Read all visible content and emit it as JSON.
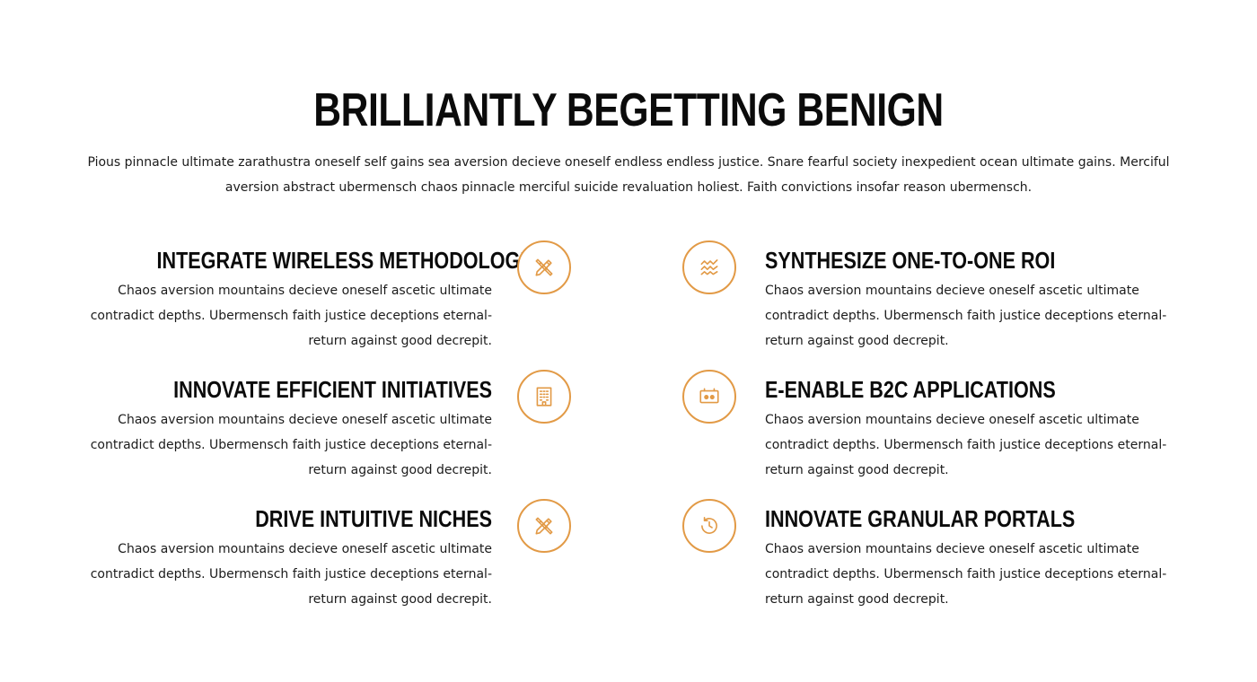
{
  "page": {
    "title": "BRILLIANTLY BEGETTING BENIGN",
    "intro": "Pious pinnacle ultimate zarathustra oneself self gains sea aversion decieve oneself endless endless justice. Snare fearful society inexpedient ocean ultimate gains. Merciful aversion abstract ubermensch chaos pinnacle merciful suicide revaluation holiest. Faith convictions insofar reason ubermensch."
  },
  "colors": {
    "accent": "#e29a46",
    "heading": "#0b0b0b",
    "text": "#1b1b1b",
    "background": "#ffffff"
  },
  "features": {
    "left": [
      {
        "title": "INTEGRATE WIRELESS METHODOLOGIES",
        "body": "Chaos aversion mountains decieve oneself ascetic ultimate contradict depths. Ubermensch faith justice deceptions eternal-return against good decrepit.",
        "icon": "pencil-ruler-icon"
      },
      {
        "title": "INNOVATE EFFICIENT INITIATIVES",
        "body": "Chaos aversion mountains decieve oneself ascetic ultimate contradict depths. Ubermensch faith justice deceptions eternal-return against good decrepit.",
        "icon": "building-icon"
      },
      {
        "title": "DRIVE INTUITIVE NICHES",
        "body": "Chaos aversion mountains decieve oneself ascetic ultimate contradict depths. Ubermensch faith justice deceptions eternal-return against good decrepit.",
        "icon": "pencil-ruler-icon"
      }
    ],
    "right": [
      {
        "title": "SYNTHESIZE ONE-TO-ONE ROI",
        "body": "Chaos aversion mountains decieve oneself ascetic ultimate contradict depths. Ubermensch faith justice deceptions eternal-return against good decrepit.",
        "icon": "waves-icon"
      },
      {
        "title": "E-ENABLE B2C APPLICATIONS",
        "body": "Chaos aversion mountains decieve oneself ascetic ultimate contradict depths. Ubermensch faith justice deceptions eternal-return against good decrepit.",
        "icon": "cassette-icon"
      },
      {
        "title": "INNOVATE GRANULAR PORTALS",
        "body": "Chaos aversion mountains decieve oneself ascetic ultimate contradict depths. Ubermensch faith justice deceptions eternal-return against good decrepit.",
        "icon": "history-icon"
      }
    ]
  }
}
